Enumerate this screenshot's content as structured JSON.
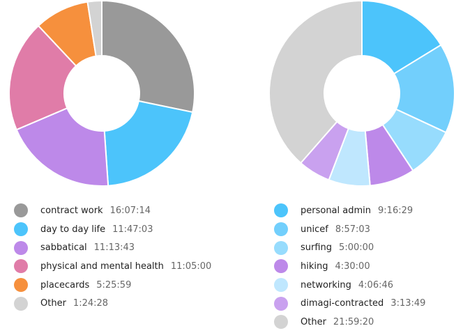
{
  "chart_data": [
    {
      "type": "pie",
      "style": "donut",
      "slices": [
        {
          "label": "contract work",
          "value_hms": "16:07:14",
          "color": "#999999"
        },
        {
          "label": "day to day life",
          "value_hms": "11:47:03",
          "color": "#4cc4fb"
        },
        {
          "label": "sabbatical",
          "value_hms": "11:13:43",
          "color": "#bd89e9"
        },
        {
          "label": "physical and mental health",
          "value_hms": "11:05:00",
          "color": "#e07ca8"
        },
        {
          "label": "placecards",
          "value_hms": "5:25:59",
          "color": "#f6903d"
        },
        {
          "label": "Other",
          "value_hms": "1:24:28",
          "color": "#d3d3d3"
        }
      ]
    },
    {
      "type": "pie",
      "style": "donut",
      "slices": [
        {
          "label": "personal admin",
          "value_hms": "9:16:29",
          "color": "#4cc4fb"
        },
        {
          "label": "unicef",
          "value_hms": "8:57:03",
          "color": "#72cffc"
        },
        {
          "label": "surfing",
          "value_hms": "5:00:00",
          "color": "#97dcfd"
        },
        {
          "label": "hiking",
          "value_hms": "4:30:00",
          "color": "#bd89e9"
        },
        {
          "label": "networking",
          "value_hms": "4:06:46",
          "color": "#bfe7fe"
        },
        {
          "label": "dimagi-contracted",
          "value_hms": "3:13:49",
          "color": "#c9a1ef"
        },
        {
          "label": "Other",
          "value_hms": "21:59:20",
          "color": "#d3d3d3"
        }
      ]
    }
  ]
}
